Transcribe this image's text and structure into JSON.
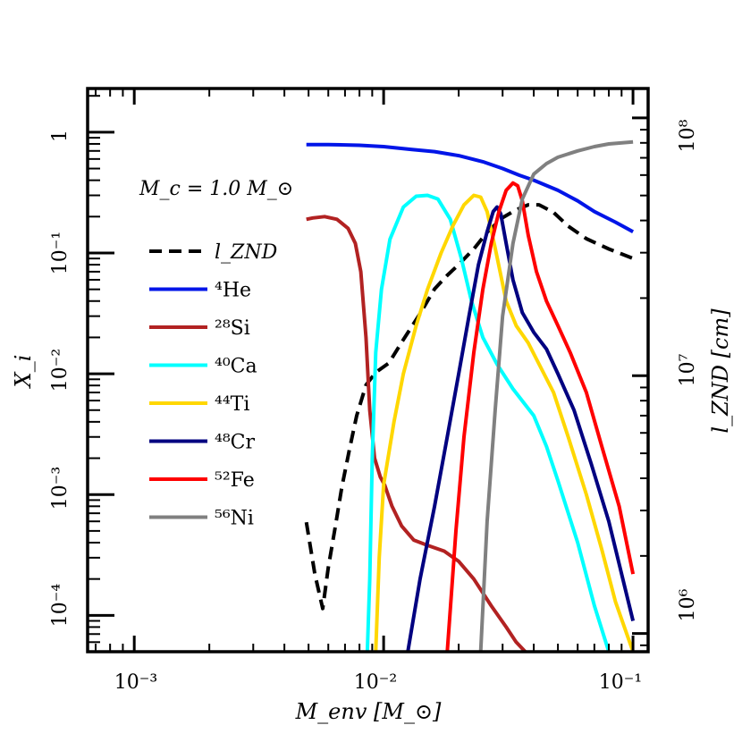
{
  "chart_data": {
    "type": "line",
    "xscale": "log",
    "xlim": [
      0.00065,
      0.115
    ],
    "yscale_left": "log",
    "ylim_left": [
      5e-05,
      2.3
    ],
    "yscale_right": "log",
    "ylim_right": [
      850000,
      130000000
    ],
    "xlabel": "M_env [M_⊙]",
    "ylabel_left": "X_i",
    "ylabel_right": "l_ZND [cm]",
    "annotation": "M_c = 1.0 M_⊙",
    "grid": false,
    "legend_position": "left",
    "x_tick_labels": [
      "10⁻³",
      "10⁻²",
      "10⁻¹"
    ],
    "y_tick_labels_left": [
      "1",
      "10⁻¹",
      "10⁻²",
      "10⁻³",
      "10⁻⁴"
    ],
    "y_tick_labels_right": [
      "10⁸",
      "10⁷",
      "10⁶"
    ],
    "series": [
      {
        "name": "l_ZND",
        "axis": "right",
        "color": "#000000",
        "dash": true,
        "points": [
          [
            0.0049,
            2700000
          ],
          [
            0.0053,
            1700000
          ],
          [
            0.0057,
            1250000
          ],
          [
            0.006,
            1800000
          ],
          [
            0.0064,
            2600000
          ],
          [
            0.0068,
            3700000
          ],
          [
            0.0073,
            5200000
          ],
          [
            0.0078,
            7000000
          ],
          [
            0.0085,
            9200000
          ],
          [
            0.0093,
            10300000
          ],
          [
            0.0105,
            11200000
          ],
          [
            0.012,
            13800000
          ],
          [
            0.014,
            17400000
          ],
          [
            0.016,
            21700000
          ],
          [
            0.018,
            24500000
          ],
          [
            0.02,
            27000000
          ],
          [
            0.023,
            31000000
          ],
          [
            0.026,
            36000000
          ],
          [
            0.03,
            41000000
          ],
          [
            0.034,
            44000000
          ],
          [
            0.038,
            46000000
          ],
          [
            0.042,
            46000000
          ],
          [
            0.048,
            43000000
          ],
          [
            0.055,
            38000000
          ],
          [
            0.065,
            34000000
          ],
          [
            0.08,
            31000000
          ],
          [
            0.1,
            28500000
          ]
        ]
      },
      {
        "name": "⁴He",
        "axis": "left",
        "color": "#0015e8",
        "points": [
          [
            0.0049,
            0.79
          ],
          [
            0.006,
            0.79
          ],
          [
            0.008,
            0.78
          ],
          [
            0.01,
            0.76
          ],
          [
            0.013,
            0.72
          ],
          [
            0.016,
            0.69
          ],
          [
            0.02,
            0.64
          ],
          [
            0.025,
            0.57
          ],
          [
            0.03,
            0.5
          ],
          [
            0.035,
            0.44
          ],
          [
            0.04,
            0.4
          ],
          [
            0.05,
            0.33
          ],
          [
            0.06,
            0.27
          ],
          [
            0.07,
            0.22
          ],
          [
            0.085,
            0.18
          ],
          [
            0.1,
            0.15
          ]
        ]
      },
      {
        "name": "²⁸Si",
        "axis": "left",
        "color": "#b22222",
        "points": [
          [
            0.0049,
            0.19
          ],
          [
            0.0052,
            0.195
          ],
          [
            0.0058,
            0.2
          ],
          [
            0.0065,
            0.19
          ],
          [
            0.0072,
            0.16
          ],
          [
            0.0077,
            0.12
          ],
          [
            0.0081,
            0.07
          ],
          [
            0.0085,
            0.02
          ],
          [
            0.0088,
            0.005
          ],
          [
            0.0092,
            0.002
          ],
          [
            0.0097,
            0.0014
          ],
          [
            0.0101,
            0.0012
          ],
          [
            0.0108,
            0.0008
          ],
          [
            0.0118,
            0.00055
          ],
          [
            0.0132,
            0.00042
          ],
          [
            0.015,
            0.00038
          ],
          [
            0.0175,
            0.00034
          ],
          [
            0.02,
            0.00028
          ],
          [
            0.023,
            0.0002
          ],
          [
            0.027,
            0.00012
          ],
          [
            0.031,
            8e-05
          ],
          [
            0.034,
            6e-05
          ],
          [
            0.037,
            5e-05
          ]
        ]
      },
      {
        "name": "⁴⁰Ca",
        "axis": "left",
        "color": "#00ffff",
        "points": [
          [
            0.0086,
            5e-05
          ],
          [
            0.0088,
            0.0002
          ],
          [
            0.009,
            0.002
          ],
          [
            0.0093,
            0.015
          ],
          [
            0.0098,
            0.05
          ],
          [
            0.0106,
            0.13
          ],
          [
            0.012,
            0.24
          ],
          [
            0.0135,
            0.295
          ],
          [
            0.015,
            0.3
          ],
          [
            0.0165,
            0.28
          ],
          [
            0.0185,
            0.19
          ],
          [
            0.0205,
            0.09
          ],
          [
            0.0225,
            0.04
          ],
          [
            0.025,
            0.02
          ],
          [
            0.0285,
            0.012
          ],
          [
            0.033,
            0.0075
          ],
          [
            0.04,
            0.0045
          ],
          [
            0.045,
            0.0025
          ],
          [
            0.05,
            0.0013
          ],
          [
            0.06,
            0.0004
          ],
          [
            0.07,
            0.00012
          ],
          [
            0.08,
            5e-05
          ]
        ]
      },
      {
        "name": "⁴⁴Ti",
        "axis": "left",
        "color": "#ffd700",
        "points": [
          [
            0.0093,
            5e-05
          ],
          [
            0.0096,
            0.0003
          ],
          [
            0.01,
            0.0012
          ],
          [
            0.011,
            0.004
          ],
          [
            0.012,
            0.01
          ],
          [
            0.0135,
            0.025
          ],
          [
            0.015,
            0.05
          ],
          [
            0.017,
            0.1
          ],
          [
            0.019,
            0.17
          ],
          [
            0.021,
            0.25
          ],
          [
            0.023,
            0.3
          ],
          [
            0.0245,
            0.29
          ],
          [
            0.026,
            0.22
          ],
          [
            0.028,
            0.11
          ],
          [
            0.031,
            0.04
          ],
          [
            0.034,
            0.025
          ],
          [
            0.038,
            0.018
          ],
          [
            0.042,
            0.012
          ],
          [
            0.048,
            0.007
          ],
          [
            0.055,
            0.003
          ],
          [
            0.065,
            0.001
          ],
          [
            0.075,
            0.00035
          ],
          [
            0.085,
            0.00013
          ],
          [
            0.1,
            5e-05
          ]
        ]
      },
      {
        "name": "⁴⁸Cr",
        "axis": "left",
        "color": "#000080",
        "points": [
          [
            0.0125,
            5e-05
          ],
          [
            0.014,
            0.0002
          ],
          [
            0.016,
            0.0008
          ],
          [
            0.018,
            0.003
          ],
          [
            0.02,
            0.01
          ],
          [
            0.022,
            0.03
          ],
          [
            0.024,
            0.08
          ],
          [
            0.026,
            0.15
          ],
          [
            0.0275,
            0.22
          ],
          [
            0.0285,
            0.24
          ],
          [
            0.0295,
            0.21
          ],
          [
            0.031,
            0.12
          ],
          [
            0.033,
            0.06
          ],
          [
            0.036,
            0.032
          ],
          [
            0.04,
            0.022
          ],
          [
            0.045,
            0.016
          ],
          [
            0.05,
            0.01
          ],
          [
            0.058,
            0.005
          ],
          [
            0.068,
            0.0018
          ],
          [
            0.08,
            0.0006
          ],
          [
            0.1,
            9e-05
          ]
        ]
      },
      {
        "name": "⁵²Fe",
        "axis": "left",
        "color": "#ff0000",
        "points": [
          [
            0.018,
            5e-05
          ],
          [
            0.0195,
            0.0005
          ],
          [
            0.021,
            0.003
          ],
          [
            0.023,
            0.015
          ],
          [
            0.025,
            0.05
          ],
          [
            0.027,
            0.12
          ],
          [
            0.029,
            0.22
          ],
          [
            0.031,
            0.33
          ],
          [
            0.033,
            0.38
          ],
          [
            0.0345,
            0.36
          ],
          [
            0.036,
            0.27
          ],
          [
            0.038,
            0.14
          ],
          [
            0.041,
            0.07
          ],
          [
            0.045,
            0.04
          ],
          [
            0.05,
            0.025
          ],
          [
            0.056,
            0.015
          ],
          [
            0.065,
            0.007
          ],
          [
            0.075,
            0.0025
          ],
          [
            0.088,
            0.0008
          ],
          [
            0.1,
            0.00022
          ]
        ]
      },
      {
        "name": "⁵⁶Ni",
        "axis": "left",
        "color": "#808080",
        "points": [
          [
            0.0245,
            5e-05
          ],
          [
            0.026,
            0.0006
          ],
          [
            0.028,
            0.005
          ],
          [
            0.03,
            0.03
          ],
          [
            0.033,
            0.12
          ],
          [
            0.036,
            0.28
          ],
          [
            0.04,
            0.45
          ],
          [
            0.045,
            0.55
          ],
          [
            0.05,
            0.62
          ],
          [
            0.06,
            0.7
          ],
          [
            0.07,
            0.76
          ],
          [
            0.08,
            0.8
          ],
          [
            0.1,
            0.83
          ]
        ]
      }
    ]
  }
}
